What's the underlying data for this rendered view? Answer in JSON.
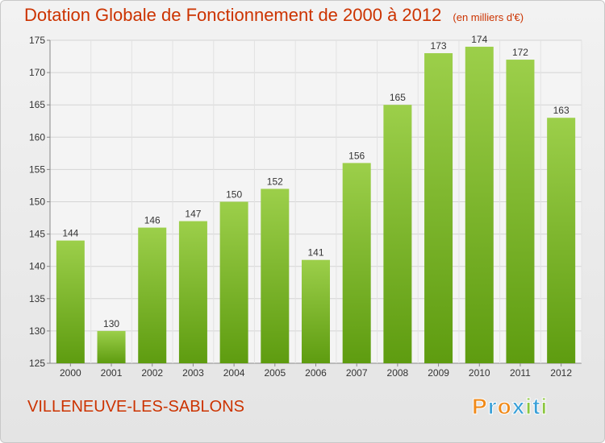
{
  "header": {
    "title": "Dotation Globale de Fonctionnement de 2000 à 2012",
    "unit": "(en milliers d'€)"
  },
  "footer": {
    "commune": "VILLENEUVE-LES-SABLONS",
    "logo_text": "Proxiti"
  },
  "colors": {
    "title": "#cc3300",
    "bar_top": "#9ccf4a",
    "bar_bottom": "#5e9c10",
    "logo_letters": [
      "#f08a1a",
      "#3aa0d8",
      "#f08a1a",
      "#3aa0d8",
      "#8cc63f",
      "#3aa0d8",
      "#8cc63f"
    ]
  },
  "chart_data": {
    "type": "bar",
    "title": "Dotation Globale de Fonctionnement de 2000 à 2012",
    "subtitle": "(en milliers d'€)",
    "categories": [
      "2000",
      "2001",
      "2002",
      "2003",
      "2004",
      "2005",
      "2006",
      "2007",
      "2008",
      "2009",
      "2010",
      "2011",
      "2012"
    ],
    "values": [
      144,
      130,
      146,
      147,
      150,
      152,
      141,
      156,
      165,
      173,
      174,
      172,
      163
    ],
    "ylim": [
      125,
      175
    ],
    "yticks": [
      125,
      130,
      135,
      140,
      145,
      150,
      155,
      160,
      165,
      170,
      175
    ],
    "grid": true,
    "data_labels": true
  }
}
